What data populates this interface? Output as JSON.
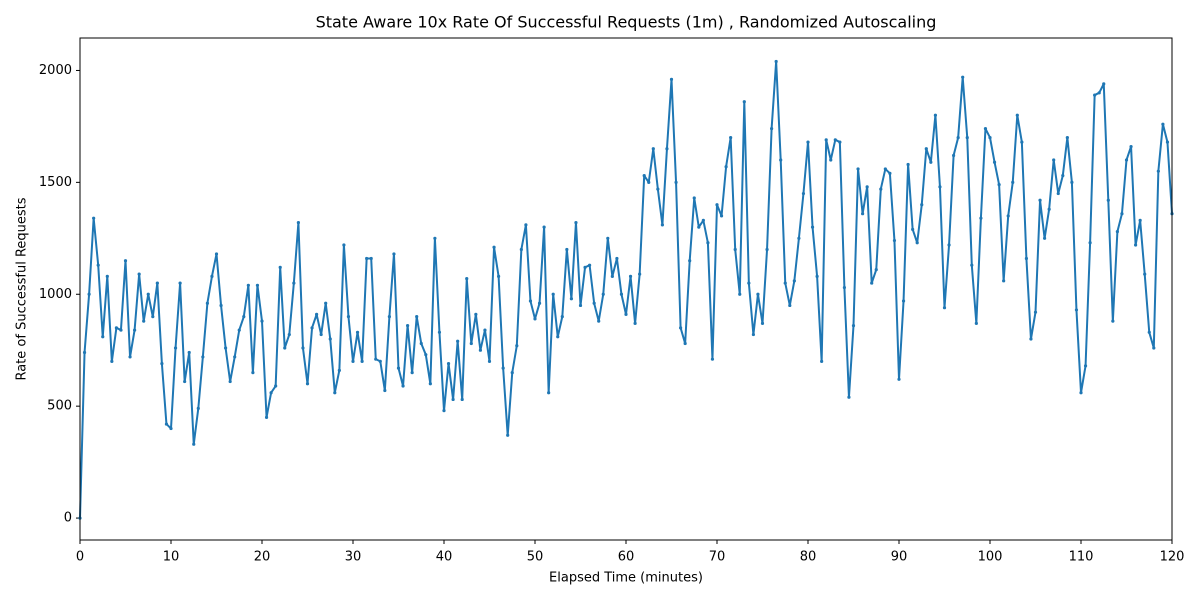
{
  "chart_data": {
    "type": "line",
    "title": "State Aware 10x Rate Of Successful Requests (1m) , Randomized Autoscaling",
    "x_label": "Elapsed Time (minutes)",
    "y_label": "Rate of Successful Requests",
    "xlim": [
      0,
      120
    ],
    "ylim": [
      -98,
      2145
    ],
    "xticks": [
      0,
      10,
      20,
      30,
      40,
      50,
      60,
      70,
      80,
      90,
      100,
      110,
      120
    ],
    "yticks": [
      0,
      500,
      1000,
      1500,
      2000
    ],
    "grid": false,
    "x": [
      0,
      0.5,
      1,
      1.5,
      2,
      2.5,
      3,
      3.5,
      4,
      4.5,
      5,
      5.5,
      6,
      6.5,
      7,
      7.5,
      8,
      8.5,
      9,
      9.5,
      10,
      10.5,
      11,
      11.5,
      12,
      12.5,
      13,
      13.5,
      14,
      14.5,
      15,
      15.5,
      16,
      16.5,
      17,
      17.5,
      18,
      18.5,
      19,
      19.5,
      20,
      20.5,
      21,
      21.5,
      22,
      22.5,
      23,
      23.5,
      24,
      24.5,
      25,
      25.5,
      26,
      26.5,
      27,
      27.5,
      28,
      28.5,
      29,
      29.5,
      30,
      30.5,
      31,
      31.5,
      32,
      32.5,
      33,
      33.5,
      34,
      34.5,
      35,
      35.5,
      36,
      36.5,
      37,
      37.5,
      38,
      38.5,
      39,
      39.5,
      40,
      40.5,
      41,
      41.5,
      42,
      42.5,
      43,
      43.5,
      44,
      44.5,
      45,
      45.5,
      46,
      46.5,
      47,
      47.5,
      48,
      48.5,
      49,
      49.5,
      50,
      50.5,
      51,
      51.5,
      52,
      52.5,
      53,
      53.5,
      54,
      54.5,
      55,
      55.5,
      56,
      56.5,
      57,
      57.5,
      58,
      58.5,
      59,
      59.5,
      60,
      60.5,
      61,
      61.5,
      62,
      62.5,
      63,
      63.5,
      64,
      64.5,
      65,
      65.5,
      66,
      66.5,
      67,
      67.5,
      68,
      68.5,
      69,
      69.5,
      70,
      70.5,
      71,
      71.5,
      72,
      72.5,
      73,
      73.5,
      74,
      74.5,
      75,
      75.5,
      76,
      76.5,
      77,
      77.5,
      78,
      78.5,
      79,
      79.5,
      80,
      80.5,
      81,
      81.5,
      82,
      82.5,
      83,
      83.5,
      84,
      84.5,
      85,
      85.5,
      86,
      86.5,
      87,
      87.5,
      88,
      88.5,
      89,
      89.5,
      90,
      90.5,
      91,
      91.5,
      92,
      92.5,
      93,
      93.5,
      94,
      94.5,
      95,
      95.5,
      96,
      96.5,
      97,
      97.5,
      98,
      98.5,
      99,
      99.5,
      100,
      100.5,
      101,
      101.5,
      102,
      102.5,
      103,
      103.5,
      104,
      104.5,
      105,
      105.5,
      106,
      106.5,
      107,
      107.5,
      108,
      108.5,
      109,
      109.5,
      110,
      110.5,
      111,
      111.5,
      112,
      112.5,
      113,
      113.5,
      114,
      114.5,
      115,
      115.5,
      116,
      116.5,
      117,
      117.5,
      118,
      118.5,
      119,
      119.5,
      120
    ],
    "series": [
      {
        "color": "#1f77b4",
        "values": [
          0,
          740,
          1000,
          1340,
          1130,
          810,
          1080,
          700,
          850,
          840,
          1150,
          720,
          840,
          1090,
          880,
          1000,
          900,
          1050,
          690,
          420,
          400,
          760,
          1050,
          610,
          740,
          330,
          490,
          720,
          960,
          1080,
          1180,
          950,
          760,
          610,
          720,
          840,
          900,
          1040,
          650,
          1040,
          880,
          450,
          560,
          590,
          1120,
          760,
          820,
          1050,
          1320,
          760,
          600,
          850,
          910,
          820,
          960,
          800,
          560,
          660,
          1220,
          900,
          700,
          830,
          700,
          1160,
          1160,
          710,
          700,
          570,
          900,
          1180,
          670,
          590,
          860,
          650,
          900,
          780,
          730,
          600,
          1250,
          830,
          480,
          690,
          530,
          790,
          530,
          1070,
          780,
          910,
          750,
          840,
          700,
          1210,
          1080,
          670,
          370,
          650,
          770,
          1200,
          1310,
          970,
          890,
          960,
          1300,
          560,
          1000,
          810,
          900,
          1200,
          980,
          1320,
          950,
          1120,
          1130,
          960,
          880,
          1000,
          1250,
          1080,
          1160,
          1000,
          910,
          1080,
          870,
          1090,
          1530,
          1500,
          1650,
          1470,
          1310,
          1650,
          1960,
          1500,
          850,
          780,
          1150,
          1430,
          1300,
          1330,
          1230,
          710,
          1400,
          1350,
          1570,
          1700,
          1200,
          1000,
          1860,
          1050,
          820,
          1000,
          870,
          1200,
          1740,
          2040,
          1600,
          1050,
          950,
          1060,
          1250,
          1450,
          1680,
          1300,
          1080,
          700,
          1690,
          1600,
          1690,
          1680,
          1030,
          540,
          860,
          1560,
          1360,
          1480,
          1050,
          1110,
          1470,
          1560,
          1540,
          1240,
          620,
          970,
          1580,
          1290,
          1230,
          1400,
          1650,
          1590,
          1800,
          1480,
          940,
          1220,
          1620,
          1700,
          1970,
          1700,
          1130,
          870,
          1340,
          1740,
          1700,
          1590,
          1490,
          1060,
          1350,
          1500,
          1800,
          1680,
          1160,
          800,
          920,
          1420,
          1250,
          1380,
          1600,
          1450,
          1530,
          1700,
          1500,
          930,
          560,
          680,
          1230,
          1890,
          1900,
          1940,
          1420,
          880,
          1280,
          1360,
          1600,
          1660,
          1220,
          1330,
          1090,
          830,
          760,
          1550,
          1760,
          1680,
          1360
        ]
      }
    ]
  }
}
